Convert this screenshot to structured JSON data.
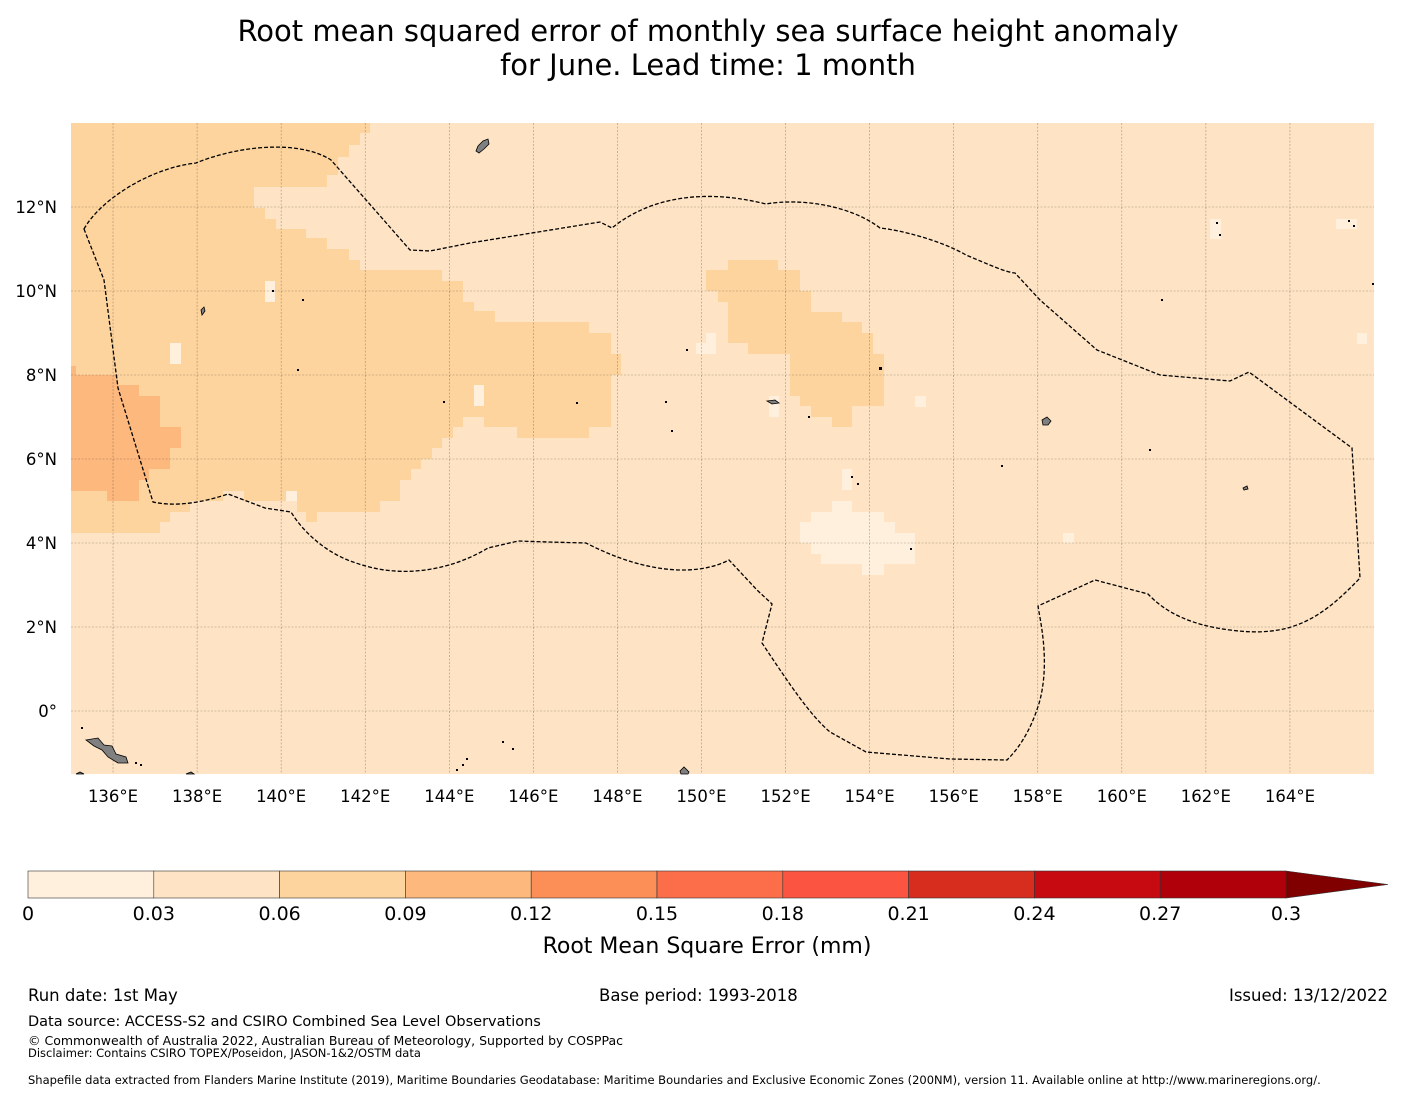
{
  "title": {
    "line1": "Root mean squared error of monthly sea surface height anomaly",
    "line2": "for June. Lead time: 1 month"
  },
  "map": {
    "lat_labels": [
      "12°N",
      "10°N",
      "8°N",
      "6°N",
      "4°N",
      "2°N",
      "0°"
    ],
    "lon_labels": [
      "136°E",
      "138°E",
      "140°E",
      "142°E",
      "144°E",
      "146°E",
      "148°E",
      "150°E",
      "152°E",
      "154°E",
      "156°E",
      "158°E",
      "160°E",
      "162°E",
      "164°E"
    ],
    "lat_values": [
      12,
      10,
      8,
      6,
      4,
      2,
      0
    ],
    "lon_values": [
      136,
      138,
      140,
      142,
      144,
      146,
      148,
      150,
      152,
      154,
      156,
      158,
      160,
      162,
      164
    ],
    "extent": {
      "lon_min": 135.0,
      "lon_max": 166.0,
      "lat_min": -1.5,
      "lat_max": 14.0
    },
    "ocean_value_class": "0.03-0.06",
    "land_color": "#808080",
    "boundary_style": "dashed"
  },
  "colorbar": {
    "label": "Root Mean Square Error (mm)",
    "ticks": [
      "0",
      "0.03",
      "0.06",
      "0.09",
      "0.12",
      "0.15",
      "0.18",
      "0.21",
      "0.24",
      "0.27",
      "0.3"
    ],
    "colors": [
      "#fff0de",
      "#fee4c4",
      "#fdd49d",
      "#fdb87e",
      "#fc8e58",
      "#fc6e4a",
      "#fb5440",
      "#d62d1f",
      "#c70a12",
      "#b00009",
      "#800000"
    ],
    "extend": "max"
  },
  "footer": {
    "run_date": "Run date: 1st May",
    "base_period": "Base period: 1993-2018",
    "issued": "Issued: 13/12/2022",
    "data_source": "Data source: ACCESS-S2 and CSIRO Combined Sea Level Observations",
    "copyright": "© Commonwealth of Australia 2022, Australian Bureau of Meteorology, Supported by COSPPac",
    "disclaimer": "Disclaimer: Contains CSIRO TOPEX/Poseidon, JASON-1&2/OSTM data",
    "shapefile": "Shapefile data extracted from Flanders Marine Institute (2019), Maritime Boundaries Geodatabase: Maritime Boundaries and Exclusive Economic Zones (200NM), version 11. Available online at http://www.marineregions.org/."
  }
}
